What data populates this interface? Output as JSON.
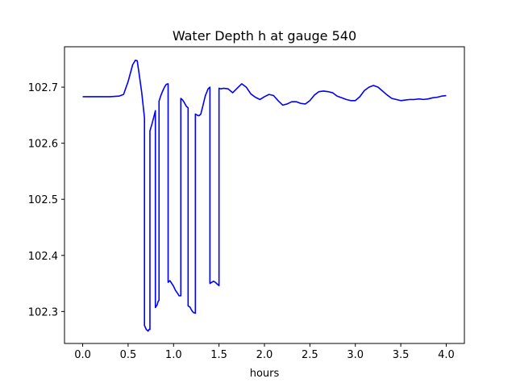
{
  "chart_data": {
    "type": "line",
    "title": "Water Depth h at gauge 540",
    "xlabel": "hours",
    "ylabel": "",
    "xlim": [
      -0.2,
      4.2
    ],
    "ylim": [
      102.243,
      102.772
    ],
    "xticks": [
      0.0,
      0.5,
      1.0,
      1.5,
      2.0,
      2.5,
      3.0,
      3.5,
      4.0
    ],
    "xtick_labels": [
      "0.0",
      "0.5",
      "1.0",
      "1.5",
      "2.0",
      "2.5",
      "3.0",
      "3.5",
      "4.0"
    ],
    "yticks": [
      102.3,
      102.4,
      102.5,
      102.6,
      102.7
    ],
    "ytick_labels": [
      "102.3",
      "102.4",
      "102.5",
      "102.6",
      "102.7"
    ],
    "grid": false,
    "series": [
      {
        "color": "#0000ff",
        "x": [
          0.0,
          0.1,
          0.2,
          0.3,
          0.4,
          0.45,
          0.5,
          0.55,
          0.58,
          0.6,
          0.62,
          0.65,
          0.68,
          0.68,
          0.7,
          0.72,
          0.73,
          0.74,
          0.74,
          0.76,
          0.78,
          0.8,
          0.8,
          0.82,
          0.83,
          0.84,
          0.84,
          0.86,
          0.88,
          0.9,
          0.92,
          0.94,
          0.94,
          0.96,
          0.98,
          1.0,
          1.02,
          1.05,
          1.06,
          1.08,
          1.08,
          1.1,
          1.12,
          1.14,
          1.16,
          1.16,
          1.18,
          1.2,
          1.22,
          1.24,
          1.24,
          1.26,
          1.28,
          1.3,
          1.32,
          1.35,
          1.38,
          1.4,
          1.4,
          1.42,
          1.44,
          1.46,
          1.48,
          1.5,
          1.5,
          1.52,
          1.55,
          1.6,
          1.65,
          1.7,
          1.75,
          1.8,
          1.85,
          1.9,
          1.95,
          2.0,
          2.05,
          2.1,
          2.15,
          2.2,
          2.25,
          2.3,
          2.35,
          2.4,
          2.45,
          2.5,
          2.55,
          2.6,
          2.65,
          2.7,
          2.75,
          2.8,
          2.85,
          2.9,
          2.95,
          3.0,
          3.05,
          3.1,
          3.15,
          3.2,
          3.25,
          3.3,
          3.35,
          3.4,
          3.45,
          3.5,
          3.55,
          3.6,
          3.65,
          3.7,
          3.75,
          3.8,
          3.85,
          3.9,
          3.95,
          4.0
        ],
        "y": [
          102.683,
          102.683,
          102.683,
          102.683,
          102.684,
          102.687,
          102.71,
          102.74,
          102.748,
          102.747,
          102.725,
          102.69,
          102.645,
          102.275,
          102.268,
          102.265,
          102.268,
          102.268,
          102.622,
          102.633,
          102.645,
          102.658,
          102.307,
          102.312,
          102.318,
          102.32,
          102.675,
          102.685,
          102.693,
          102.7,
          102.705,
          102.706,
          102.352,
          102.355,
          102.35,
          102.345,
          102.338,
          102.331,
          102.328,
          102.328,
          102.68,
          102.677,
          102.672,
          102.666,
          102.663,
          102.31,
          102.308,
          102.302,
          102.298,
          102.297,
          102.652,
          102.65,
          102.649,
          102.652,
          102.665,
          102.685,
          102.697,
          102.7,
          102.35,
          102.352,
          102.354,
          102.352,
          102.349,
          102.346,
          102.698,
          102.697,
          102.698,
          102.697,
          102.69,
          102.698,
          102.706,
          102.7,
          102.688,
          102.682,
          102.678,
          102.683,
          102.687,
          102.685,
          102.676,
          102.668,
          102.67,
          102.674,
          102.674,
          102.671,
          102.67,
          102.676,
          102.686,
          102.692,
          102.693,
          102.692,
          102.69,
          102.684,
          102.681,
          102.678,
          102.676,
          102.676,
          102.683,
          102.694,
          102.7,
          102.703,
          102.7,
          102.693,
          102.686,
          102.68,
          102.678,
          102.676,
          102.677,
          102.678,
          102.678,
          102.679,
          102.678,
          102.679,
          102.681,
          102.682,
          102.684,
          102.685
        ]
      }
    ]
  }
}
